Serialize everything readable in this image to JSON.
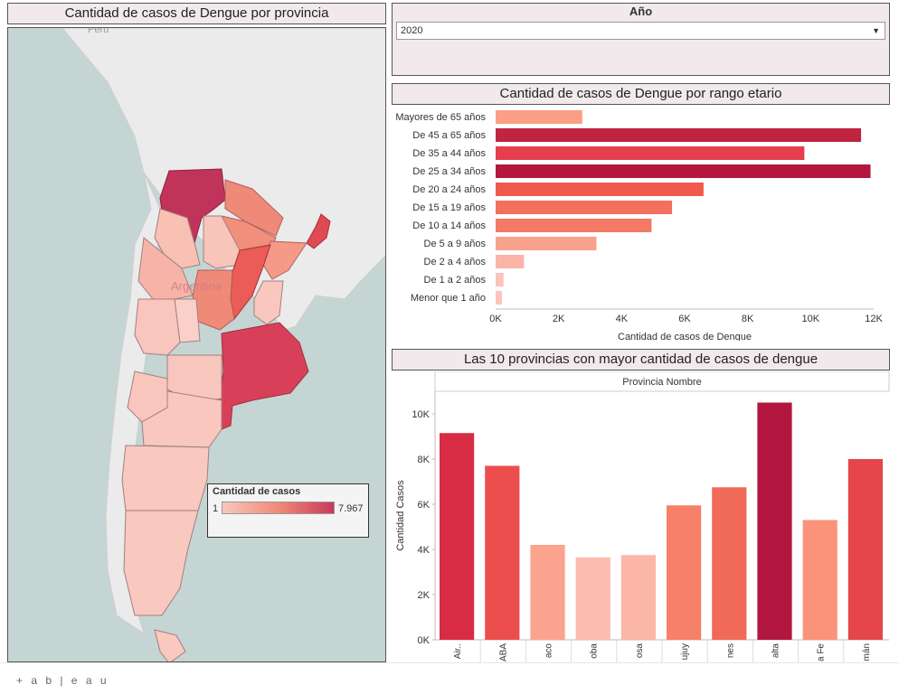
{
  "map_panel": {
    "title": "Cantidad de casos de Dengue por provincia",
    "labels": {
      "country": "Argentina",
      "neighbor": "Perú"
    },
    "legend": {
      "title": "Cantidad de casos",
      "min": "1",
      "max": "7.967"
    }
  },
  "year_filter": {
    "label": "Año",
    "selected": "2020"
  },
  "age_panel": {
    "title": "Cantidad de casos de Dengue por rango etario",
    "chart_data": {
      "type": "bar",
      "orientation": "horizontal",
      "categories": [
        "Mayores de 65 años",
        "De 45 a 65 años",
        "De 35 a 44 años",
        "De 25 a 34 años",
        "De 20 a 24 años",
        "De 15 a 19 años",
        "De 10 a 14 años",
        "De 5 a 9 años",
        "De 2 a 4 años",
        "De 1 a 2 años",
        "Menor que 1 año"
      ],
      "values": [
        2750,
        11600,
        9800,
        11900,
        6600,
        5600,
        4950,
        3200,
        900,
        250,
        200
      ],
      "colors": [
        "#fb9e86",
        "#c0243f",
        "#e63e4d",
        "#b3163e",
        "#ef5a4c",
        "#f2705e",
        "#f47a66",
        "#f8a18c",
        "#fbb5a7",
        "#fcc3b9",
        "#fcc5bb"
      ],
      "xticks": [
        "0K",
        "2K",
        "4K",
        "6K",
        "8K",
        "10K",
        "12K"
      ],
      "xlim": [
        0,
        12000
      ],
      "xlabel": "Cantidad de casos de Dengue"
    }
  },
  "top_panel": {
    "title": "Las 10 provincias con mayor cantidad de casos de dengue",
    "chart_data": {
      "type": "bar",
      "header": "Provincia Nombre",
      "categories": [
        "Air..",
        "ABA",
        "aco",
        "oba",
        "osa",
        "ujuy",
        "nes",
        "alta",
        "a Fe",
        "mán"
      ],
      "values": [
        9150,
        7700,
        4200,
        3650,
        3750,
        5950,
        6750,
        10500,
        5300,
        8000
      ],
      "colors": [
        "#d72c44",
        "#ec4e4e",
        "#fba38e",
        "#fcbcaf",
        "#fcb6a8",
        "#f68068",
        "#f06a57",
        "#b3163e",
        "#fb937b",
        "#e54649"
      ],
      "yticks": [
        "0K",
        "2K",
        "4K",
        "6K",
        "8K",
        "10K"
      ],
      "ylim": [
        0,
        11000
      ],
      "ylabel": "Cantidad Casos"
    }
  },
  "footer": {
    "logo": "+ a b | e a u"
  }
}
